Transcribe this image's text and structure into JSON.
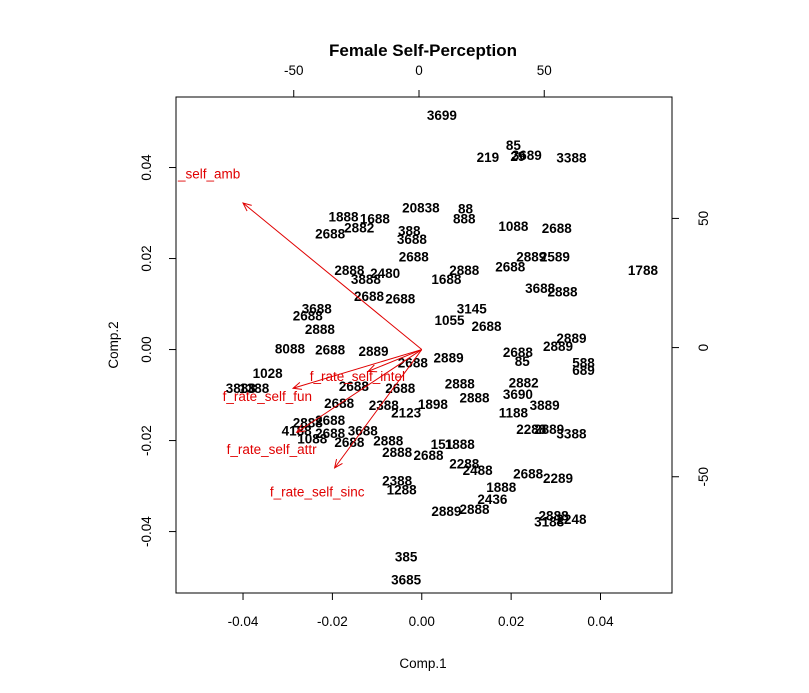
{
  "chart_data": {
    "type": "scatter",
    "subtype": "biplot",
    "title": "Female Self-Perception",
    "xlabel": "Comp.1",
    "ylabel": "Comp.2",
    "xlim": [
      -0.055,
      0.056
    ],
    "ylim": [
      -0.0535,
      0.0555
    ],
    "xticks": [
      -0.04,
      -0.02,
      0.0,
      0.02,
      0.04
    ],
    "xtick_labels": [
      "-0.04",
      "-0.02",
      "0.00",
      "0.02",
      "0.04"
    ],
    "yticks": [
      -0.04,
      -0.02,
      0.0,
      0.02,
      0.04
    ],
    "ytick_labels": [
      "-0.04",
      "-0.02",
      "0.00",
      "0.02",
      "0.04"
    ],
    "top_axis": {
      "lim": [
        -97,
        101
      ],
      "ticks": [
        -50,
        0,
        50
      ],
      "tick_labels": [
        "-50",
        "0",
        "50"
      ]
    },
    "right_axis": {
      "lim": [
        -95,
        97
      ],
      "ticks": [
        -50,
        0,
        50
      ],
      "tick_labels": [
        "-50",
        "0",
        "50"
      ]
    },
    "grid": false,
    "point_color": "#000000",
    "vector_color": "#e00000",
    "points": [
      {
        "x": 0.0045,
        "y": 0.0515,
        "label": "3699"
      },
      {
        "x": 0.0205,
        "y": 0.045,
        "label": "85"
      },
      {
        "x": 0.0215,
        "y": 0.0425,
        "label": "29"
      },
      {
        "x": 0.0148,
        "y": 0.0423,
        "label": "219"
      },
      {
        "x": 0.0235,
        "y": 0.0428,
        "label": "3689"
      },
      {
        "x": 0.0335,
        "y": 0.0422,
        "label": "3388"
      },
      {
        "x": 0.0098,
        "y": 0.031,
        "label": "88"
      },
      {
        "x": -0.0002,
        "y": 0.0312,
        "label": "20838"
      },
      {
        "x": 0.0095,
        "y": 0.0288,
        "label": "888"
      },
      {
        "x": -0.0175,
        "y": 0.0292,
        "label": "1888"
      },
      {
        "x": -0.0105,
        "y": 0.0288,
        "label": "1688"
      },
      {
        "x": -0.014,
        "y": 0.0268,
        "label": "2882"
      },
      {
        "x": -0.0205,
        "y": 0.0255,
        "label": "2688"
      },
      {
        "x": -0.0028,
        "y": 0.0262,
        "label": "388"
      },
      {
        "x": -0.0022,
        "y": 0.0243,
        "label": "3688"
      },
      {
        "x": 0.0205,
        "y": 0.0272,
        "label": "1088"
      },
      {
        "x": 0.0302,
        "y": 0.0267,
        "label": "2688"
      },
      {
        "x": -0.0018,
        "y": 0.0205,
        "label": "2688"
      },
      {
        "x": 0.0245,
        "y": 0.0205,
        "label": "2889"
      },
      {
        "x": 0.0298,
        "y": 0.0205,
        "label": "2589"
      },
      {
        "x": 0.0495,
        "y": 0.0175,
        "label": "1788"
      },
      {
        "x": 0.0265,
        "y": 0.0135,
        "label": "3688"
      },
      {
        "x": 0.0315,
        "y": 0.0128,
        "label": "2888"
      },
      {
        "x": 0.0198,
        "y": 0.0182,
        "label": "2688"
      },
      {
        "x": 0.0095,
        "y": 0.0175,
        "label": "2888"
      },
      {
        "x": -0.0162,
        "y": 0.0175,
        "label": "2888"
      },
      {
        "x": -0.0082,
        "y": 0.0168,
        "label": "2480"
      },
      {
        "x": -0.0125,
        "y": 0.0155,
        "label": "3888"
      },
      {
        "x": 0.0055,
        "y": 0.0155,
        "label": "1688"
      },
      {
        "x": -0.0235,
        "y": 0.009,
        "label": "3688"
      },
      {
        "x": -0.0255,
        "y": 0.0075,
        "label": "2688"
      },
      {
        "x": -0.0228,
        "y": 0.0045,
        "label": "2888"
      },
      {
        "x": -0.0118,
        "y": 0.0118,
        "label": "2688"
      },
      {
        "x": -0.0048,
        "y": 0.0112,
        "label": "2688"
      },
      {
        "x": 0.0112,
        "y": 0.009,
        "label": "3145"
      },
      {
        "x": 0.0062,
        "y": 0.0065,
        "label": "1055"
      },
      {
        "x": 0.0145,
        "y": 0.0052,
        "label": "2688"
      },
      {
        "x": 0.0335,
        "y": 0.0025,
        "label": "2889"
      },
      {
        "x": 0.0305,
        "y": 0.0008,
        "label": "2889"
      },
      {
        "x": 0.0215,
        "y": -0.0005,
        "label": "2688"
      },
      {
        "x": 0.0225,
        "y": -0.0025,
        "label": "85"
      },
      {
        "x": 0.0362,
        "y": -0.0028,
        "label": "588"
      },
      {
        "x": 0.0362,
        "y": -0.0045,
        "label": "689"
      },
      {
        "x": -0.0295,
        "y": 0.0002,
        "label": "8088"
      },
      {
        "x": -0.0205,
        "y": 0.0,
        "label": "2688"
      },
      {
        "x": -0.0108,
        "y": -0.0003,
        "label": "2889"
      },
      {
        "x": -0.002,
        "y": -0.0028,
        "label": "2688"
      },
      {
        "x": 0.006,
        "y": -0.0018,
        "label": "2889"
      },
      {
        "x": -0.0345,
        "y": -0.0052,
        "label": "1028"
      },
      {
        "x": -0.0375,
        "y": -0.0085,
        "label": "1388"
      },
      {
        "x": -0.0405,
        "y": -0.0085,
        "label": "3888"
      },
      {
        "x": -0.0152,
        "y": -0.008,
        "label": "2688"
      },
      {
        "x": -0.0048,
        "y": -0.0085,
        "label": "2688"
      },
      {
        "x": 0.0085,
        "y": -0.0075,
        "label": "2888"
      },
      {
        "x": 0.0228,
        "y": -0.0072,
        "label": "2882"
      },
      {
        "x": 0.0215,
        "y": -0.0098,
        "label": "3690"
      },
      {
        "x": 0.0118,
        "y": -0.0105,
        "label": "2888"
      },
      {
        "x": 0.0025,
        "y": -0.012,
        "label": "1898"
      },
      {
        "x": -0.0185,
        "y": -0.0118,
        "label": "2688"
      },
      {
        "x": -0.0085,
        "y": -0.0122,
        "label": "2388"
      },
      {
        "x": -0.0035,
        "y": -0.0138,
        "label": "2123"
      },
      {
        "x": 0.0205,
        "y": -0.0138,
        "label": "1188"
      },
      {
        "x": 0.0275,
        "y": -0.0122,
        "label": "3889"
      },
      {
        "x": -0.0205,
        "y": -0.0155,
        "label": "2688"
      },
      {
        "x": -0.0255,
        "y": -0.016,
        "label": "2888"
      },
      {
        "x": -0.028,
        "y": -0.0178,
        "label": "4188"
      },
      {
        "x": -0.0205,
        "y": -0.0183,
        "label": "2688"
      },
      {
        "x": -0.0245,
        "y": -0.0195,
        "label": "1088"
      },
      {
        "x": -0.0132,
        "y": -0.0178,
        "label": "3688"
      },
      {
        "x": -0.0162,
        "y": -0.0203,
        "label": "2688"
      },
      {
        "x": -0.0075,
        "y": -0.02,
        "label": "2888"
      },
      {
        "x": -0.0055,
        "y": -0.0225,
        "label": "2888"
      },
      {
        "x": 0.0045,
        "y": -0.0208,
        "label": "151"
      },
      {
        "x": 0.0085,
        "y": -0.0208,
        "label": "1888"
      },
      {
        "x": 0.0245,
        "y": -0.0175,
        "label": "2288"
      },
      {
        "x": 0.0285,
        "y": -0.0175,
        "label": "2889"
      },
      {
        "x": 0.0335,
        "y": -0.0185,
        "label": "3388"
      },
      {
        "x": 0.0015,
        "y": -0.0232,
        "label": "2688"
      },
      {
        "x": 0.0095,
        "y": -0.025,
        "label": "2288"
      },
      {
        "x": 0.0125,
        "y": -0.0265,
        "label": "2488"
      },
      {
        "x": 0.0238,
        "y": -0.0272,
        "label": "2688"
      },
      {
        "x": 0.0305,
        "y": -0.0282,
        "label": "2289"
      },
      {
        "x": -0.0055,
        "y": -0.0288,
        "label": "2388"
      },
      {
        "x": -0.0045,
        "y": -0.0308,
        "label": "1288"
      },
      {
        "x": 0.0178,
        "y": -0.0302,
        "label": "1888"
      },
      {
        "x": 0.0158,
        "y": -0.0328,
        "label": "2436"
      },
      {
        "x": 0.0055,
        "y": -0.0355,
        "label": "2889"
      },
      {
        "x": 0.0118,
        "y": -0.035,
        "label": "2888"
      },
      {
        "x": 0.0295,
        "y": -0.0365,
        "label": "2888"
      },
      {
        "x": 0.0335,
        "y": -0.0372,
        "label": "2248"
      },
      {
        "x": 0.0285,
        "y": -0.0378,
        "label": "3188"
      },
      {
        "x": -0.0035,
        "y": -0.0455,
        "label": "385"
      },
      {
        "x": -0.0035,
        "y": -0.0505,
        "label": "3685"
      }
    ],
    "vectors": [
      {
        "name": "f_rate_self_amb",
        "display_label": "_self_amb",
        "x": -0.04,
        "y": 0.0322
      },
      {
        "name": "f_rate_self_fun",
        "display_label": "f_rate_self_fun",
        "x": -0.0288,
        "y": -0.0085
      },
      {
        "name": "f_rate_self_intel",
        "display_label": "f_rate_self_intel",
        "x": -0.012,
        "y": -0.0048
      },
      {
        "name": "f_rate_self_attr",
        "display_label": "f_rate_self_attr",
        "x": -0.028,
        "y": -0.0182
      },
      {
        "name": "f_rate_self_sinc",
        "display_label": "f_rate_self_sinc",
        "x": -0.0195,
        "y": -0.026
      }
    ]
  }
}
